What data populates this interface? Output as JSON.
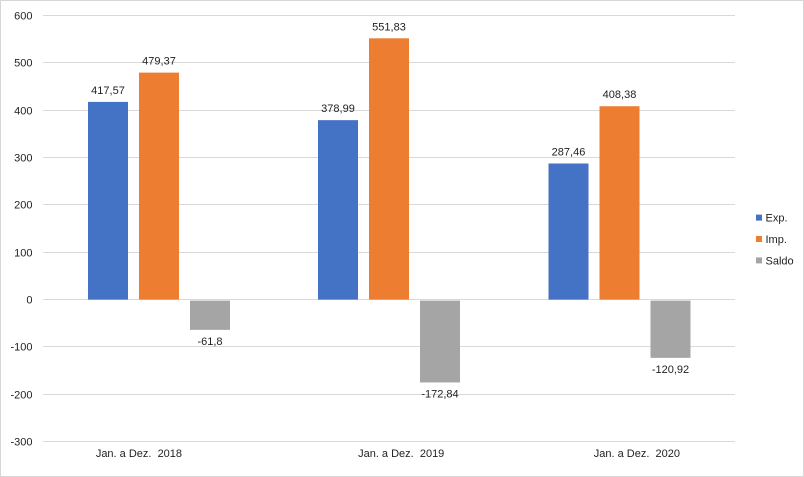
{
  "chart_data": {
    "type": "bar",
    "title": "",
    "xlabel": "",
    "ylabel": "",
    "categories": [
      "Jan. a Dez.  2018",
      "Jan. a Dez.  2019",
      "Jan. a Dez.  2020"
    ],
    "series": [
      {
        "name": "Exp.",
        "color": "#4472c4",
        "values": [
          417.57,
          378.99,
          287.46
        ],
        "data_labels": [
          "417,57",
          "378,99",
          "287,46"
        ]
      },
      {
        "name": "Imp.",
        "color": "#ed7d31",
        "values": [
          479.37,
          551.83,
          408.38
        ],
        "data_labels": [
          "479,37",
          "551,83",
          "408,38"
        ]
      },
      {
        "name": "Saldo",
        "color": "#a5a5a5",
        "values": [
          -61.8,
          -172.84,
          -120.92
        ],
        "data_labels": [
          "-61,8",
          "-172,84",
          "-120,92"
        ]
      }
    ],
    "ylim": [
      -300,
      600
    ],
    "y_tick_step": 100,
    "y_tick_labels": [
      "600",
      "500",
      "400",
      "300",
      "200",
      "100",
      "0",
      "-100",
      "-200",
      "-300"
    ],
    "grid": true,
    "legend_position": "right",
    "colors": {
      "gridline": "#d9d9d9",
      "axis_line": "#d9d9d9",
      "text": "#1f1f1f",
      "background": "#ffffff",
      "frame_border": "#d7d7d7"
    },
    "layout": {
      "category_label_dx": [
        -19.4,
        12.2,
        17.2
      ]
    }
  }
}
